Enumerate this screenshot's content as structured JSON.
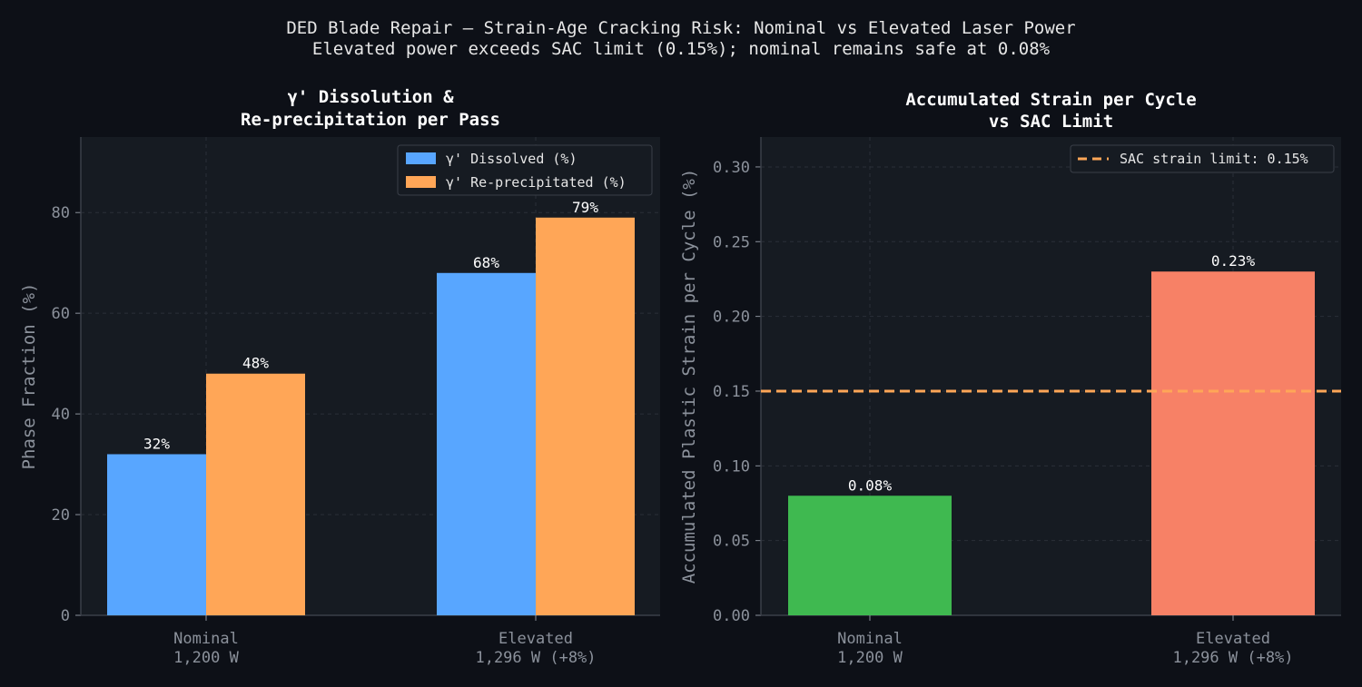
{
  "suptitle": [
    "DED Blade Repair — Strain-Age Cracking Risk: Nominal vs Elevated Laser Power",
    "Elevated power exceeds SAC limit (0.15%); nominal remains safe at 0.08%"
  ],
  "colors": {
    "background": "#0d1017",
    "panel": "#161b22",
    "blue": "#58a6ff",
    "orange": "#ffa657",
    "green": "#3fb950",
    "red": "#f78166"
  },
  "chart_data": [
    {
      "type": "bar",
      "title": [
        "γ' Dissolution &",
        "Re-precipitation per Pass"
      ],
      "categories": [
        [
          "Nominal",
          "1,200 W"
        ],
        [
          "Elevated",
          "1,296 W (+8%)"
        ]
      ],
      "series": [
        {
          "name": "γ' Dissolved (%)",
          "values": [
            32,
            68
          ],
          "labels": [
            "32%",
            "68%"
          ],
          "color": "#58a6ff"
        },
        {
          "name": "γ' Re-precipitated (%)",
          "values": [
            48,
            79
          ],
          "labels": [
            "48%",
            "79%"
          ],
          "color": "#ffa657"
        }
      ],
      "ylabel": "Phase Fraction (%)",
      "ylim": [
        0,
        95
      ],
      "yticks": [
        0,
        20,
        40,
        60,
        80
      ],
      "grid": true,
      "legend": "top-right"
    },
    {
      "type": "bar",
      "title": [
        "Accumulated Strain per Cycle",
        "vs SAC Limit"
      ],
      "categories": [
        [
          "Nominal",
          "1,200 W"
        ],
        [
          "Elevated",
          "1,296 W (+8%)"
        ]
      ],
      "values": [
        0.08,
        0.23
      ],
      "labels": [
        "0.08%",
        "0.23%"
      ],
      "colors": [
        "#3fb950",
        "#f78166"
      ],
      "ylabel": "Accumulated Plastic Strain per Cycle (%)",
      "ylim": [
        0,
        0.32
      ],
      "yticks": [
        "0.00",
        "0.05",
        "0.10",
        "0.15",
        "0.20",
        "0.25",
        "0.30"
      ],
      "reference_line": {
        "value": 0.15,
        "label": "SAC strain limit: 0.15%",
        "color": "#ffa657"
      },
      "grid": true,
      "legend": "top-right"
    }
  ]
}
